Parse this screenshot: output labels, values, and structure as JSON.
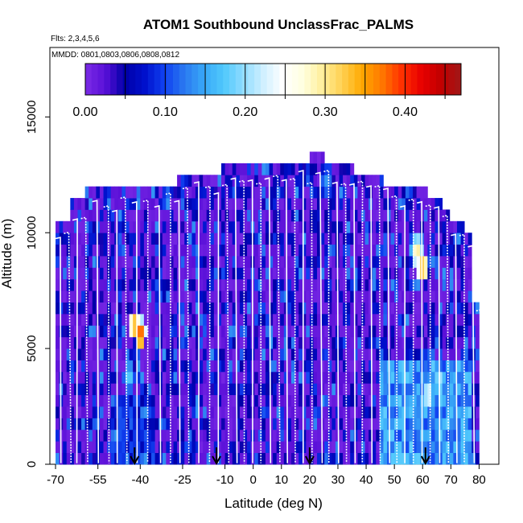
{
  "chart_data": {
    "type": "heatmap",
    "title": "ATOM1 Southbound UnclassFrac_PALMS",
    "flights_note": "Flts: 2,3,4,5,6",
    "dates_note": "MMDD: 0801,0803,0806,0808,0812",
    "xlabel": "Latitude (deg N)",
    "ylabel": "Altitude (m)",
    "xlim": [
      -72,
      87
    ],
    "ylim": [
      0,
      18000
    ],
    "x_ticks": [
      -70,
      -55,
      -40,
      -25,
      -10,
      0,
      10,
      20,
      30,
      40,
      50,
      60,
      70,
      80
    ],
    "x_tick_labels": [
      "-70",
      "-55",
      "-40",
      "-25",
      "-10",
      "0",
      "10",
      "20",
      "30",
      "40",
      "50",
      "60",
      "70",
      "80"
    ],
    "y_ticks": [
      0,
      5000,
      10000,
      15000
    ],
    "y_tick_labels": [
      "0",
      "5000",
      "10000",
      "15000"
    ],
    "colorbar": {
      "min": 0.0,
      "max": 0.47,
      "tick_values": [
        0.0,
        0.1,
        0.2,
        0.3,
        0.4
      ],
      "tick_labels": [
        "0.00",
        "0.10",
        "0.20",
        "0.30",
        "0.40"
      ],
      "colors": [
        "#7b2be6",
        "#5a10d8",
        "#0000a8",
        "#0010cc",
        "#1040f0",
        "#2a78f0",
        "#38a8f8",
        "#50c8fc",
        "#90dcff",
        "#d0f0ff",
        "#ffffff",
        "#ffffe0",
        "#ffee99",
        "#ffd050",
        "#ffa800",
        "#ff7800",
        "#ff3000",
        "#e80000",
        "#c00000",
        "#a01818"
      ]
    },
    "column_ceilings_m": [
      10500,
      10500,
      10500,
      10500,
      11200,
      11200,
      11200,
      11200,
      11800,
      11800,
      11800,
      11800,
      11800,
      11800,
      11800,
      11800,
      11800,
      11800,
      11800,
      11800,
      11800,
      11800,
      11800,
      12000,
      12000,
      12000,
      12000,
      12000,
      12000,
      12000,
      12000,
      12000,
      12000,
      12500,
      12500,
      12500,
      12500,
      12500,
      12500,
      12500,
      12500,
      12500,
      12500,
      12500,
      12500,
      12800,
      12800,
      12800,
      12800,
      12800,
      12800,
      12800,
      12800,
      12800,
      12800,
      13000,
      13000,
      13000,
      13000,
      13000,
      13000,
      13000,
      13000,
      13000,
      13000,
      13000,
      13000,
      13000,
      13000,
      13400,
      13400,
      13400,
      13400,
      12800,
      12800,
      12800,
      12800,
      12800,
      12800,
      12800,
      12800,
      12500,
      12500,
      12500,
      12500,
      12500,
      12500,
      12500,
      12500,
      12000,
      12000,
      12000,
      12000,
      12000,
      12000,
      12000,
      12000,
      12000,
      12000,
      12000,
      12000,
      11500,
      11500,
      11500,
      11500,
      11000,
      11000,
      10500,
      10500,
      10200,
      10200,
      10000,
      10000,
      7000,
      7000
    ],
    "bright_features": [
      {
        "lat": -42,
        "alt": 6000,
        "value": 0.35
      },
      {
        "lat": -40,
        "alt": 5600,
        "value": 0.4
      },
      {
        "lat": -44,
        "alt": 3800,
        "value": 0.18
      },
      {
        "lat": 26,
        "alt": 12200,
        "value": 0.14
      },
      {
        "lat": 58,
        "alt": 9200,
        "value": 0.3
      },
      {
        "lat": 60,
        "alt": 8500,
        "value": 0.35
      },
      {
        "lat": 62,
        "alt": 3000,
        "value": 0.24
      },
      {
        "lat": 66,
        "alt": 3600,
        "value": 0.21
      },
      {
        "lat": 70,
        "alt": 2200,
        "value": 0.17
      }
    ],
    "arrow_markers_lat": [
      -42,
      -13,
      20,
      61
    ],
    "profile_lats": [
      -70,
      -67,
      -64,
      -61,
      -57,
      -53,
      -50,
      -47,
      -43,
      -39,
      -35,
      -31,
      -28,
      -25,
      -21,
      -17,
      -14,
      -11,
      -8,
      -5,
      -2,
      1,
      4,
      7,
      10,
      13,
      16,
      19,
      22,
      25,
      28,
      31,
      34,
      37,
      40,
      43,
      46,
      49,
      52,
      55,
      58,
      61,
      64,
      67,
      70,
      73,
      76,
      79
    ]
  }
}
